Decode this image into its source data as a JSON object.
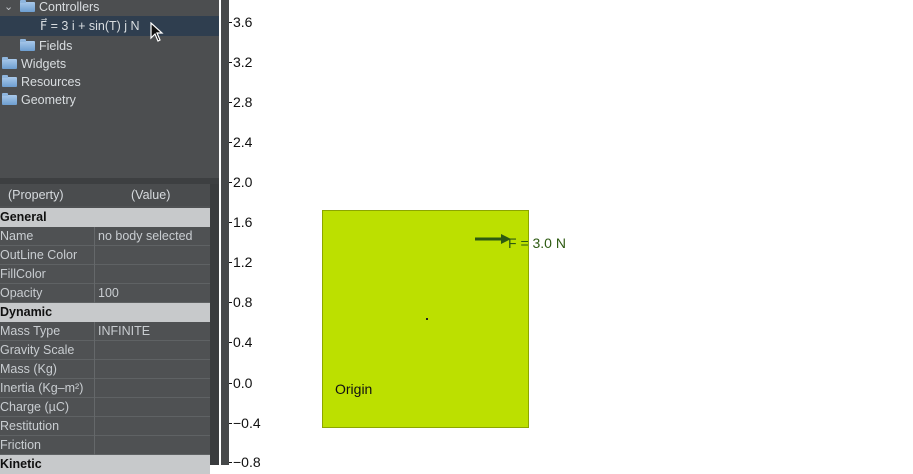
{
  "tree": {
    "items": [
      {
        "label": "Controllers",
        "type": "folder"
      },
      {
        "label": "F⃗ = 3 i + sin(T) j N",
        "type": "controller",
        "selected": true
      },
      {
        "label": "Fields",
        "type": "folder"
      },
      {
        "label": "Widgets",
        "type": "folder"
      },
      {
        "label": "Resources",
        "type": "folder"
      },
      {
        "label": "Geometry",
        "type": "folder"
      }
    ],
    "expand_icon": "chevron-down-icon",
    "folder_icon": "folder-icon"
  },
  "properties": {
    "header": {
      "property": "(Property)",
      "value": "(Value)"
    },
    "sections": [
      {
        "title": "General",
        "rows": [
          {
            "key": "Name",
            "value": "no body selected"
          },
          {
            "key": "OutLine Color",
            "value": ""
          },
          {
            "key": "FillColor",
            "value": ""
          },
          {
            "key": "Opacity",
            "value": "100"
          }
        ]
      },
      {
        "title": "Dynamic",
        "rows": [
          {
            "key": "Mass Type",
            "value": "INFINITE"
          },
          {
            "key": "Gravity Scale",
            "value": ""
          },
          {
            "key": "Mass (Kg)",
            "value": ""
          },
          {
            "key": "Inertia (Kg–m²)",
            "value": ""
          },
          {
            "key": "Charge (µC)",
            "value": ""
          },
          {
            "key": "Restitution",
            "value": ""
          },
          {
            "key": "Friction",
            "value": ""
          }
        ]
      },
      {
        "title": "Kinetic",
        "rows": []
      }
    ]
  },
  "canvas": {
    "y_ticks": [
      "3.6",
      "3.2",
      "2.8",
      "2.4",
      "2.0",
      "1.6",
      "1.2",
      "0.8",
      "0.4",
      "0.0",
      "−0.4",
      "−0.8"
    ],
    "body": {
      "fill": "#bce000",
      "outline": "#8ca600",
      "label": "Origin"
    },
    "force": {
      "label": "F = 3.0 N",
      "color": "#2d5a11"
    }
  }
}
